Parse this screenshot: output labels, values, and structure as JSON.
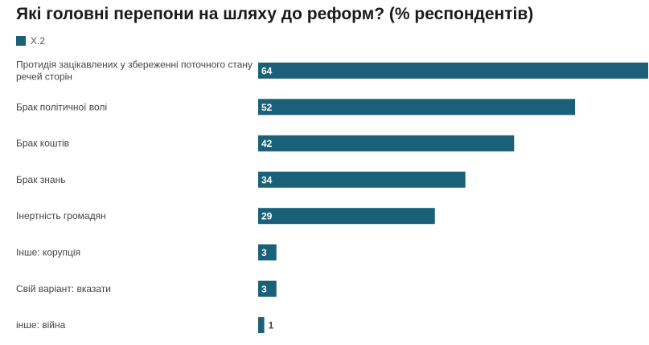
{
  "chart_data": {
    "type": "bar",
    "orientation": "horizontal",
    "title": "Які головні перепони на шляху до реформ? (% респондентів)",
    "legend_position": "top-left",
    "grid": false,
    "xlim": [
      0,
      64
    ],
    "categories": [
      [
        "Протидія зацікавлених у збереженні поточного стану",
        "речей сторін"
      ],
      [
        "Брак політичної волі"
      ],
      [
        "Брак коштів"
      ],
      [
        "Брак знань"
      ],
      [
        "Інертність громадян"
      ],
      [
        "Інше: корупція"
      ],
      [
        "Свій варіант: вказати"
      ],
      [
        "інше: війна"
      ]
    ],
    "series": [
      {
        "name": "Х.2",
        "color": "#1a6078",
        "values": [
          64,
          52,
          42,
          34,
          29,
          3,
          3,
          1
        ]
      }
    ]
  }
}
